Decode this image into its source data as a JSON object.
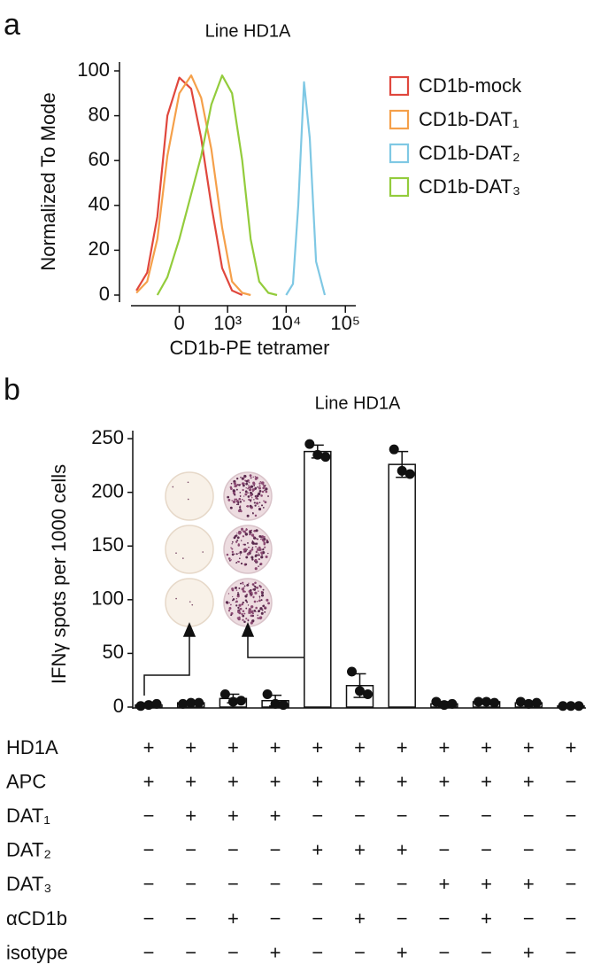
{
  "chart_data": [
    {
      "type": "line",
      "panel_label": "a",
      "title": "Line HD1A",
      "x_label": "CD1b-PE tetramer",
      "y_label": "Normalized To Mode",
      "xscale": "biexponential",
      "x": [
        -800,
        -500,
        -300,
        -150,
        0,
        150,
        300,
        500,
        800,
        1200,
        1800,
        2500,
        3500,
        5000,
        7000,
        10000,
        13000,
        16000,
        20000,
        25000,
        32000,
        45000
      ],
      "series": [
        {
          "name": "CD1b-mock",
          "color": "#e0473d",
          "values": [
            2,
            10,
            35,
            80,
            97,
            92,
            70,
            40,
            12,
            2,
            0,
            null,
            null,
            null,
            null,
            null,
            null,
            null,
            null,
            null,
            null,
            null
          ]
        },
        {
          "name": "CD1b-DAT₁",
          "color": "#f5a04a",
          "values": [
            1,
            6,
            25,
            62,
            90,
            98,
            88,
            65,
            30,
            6,
            1,
            0,
            null,
            null,
            null,
            null,
            null,
            null,
            null,
            null,
            null,
            null
          ]
        },
        {
          "name": "CD1b-DAT₂",
          "color": "#7fc8e4",
          "values": [
            null,
            null,
            null,
            null,
            null,
            null,
            null,
            null,
            null,
            null,
            null,
            null,
            null,
            null,
            null,
            0,
            5,
            40,
            95,
            70,
            15,
            0
          ]
        },
        {
          "name": "CD1b-DAT₃",
          "color": "#93cc3c",
          "values": [
            null,
            null,
            0,
            8,
            25,
            45,
            62,
            85,
            98,
            90,
            60,
            25,
            6,
            1,
            0,
            null,
            null,
            null,
            null,
            null,
            null,
            null
          ]
        }
      ],
      "xlim": [
        -1000,
        150000
      ],
      "xticks": [
        0,
        {
          "value": 1000,
          "label": "10³"
        },
        {
          "value": 10000,
          "label": "10⁴"
        },
        {
          "value": 100000,
          "label": "10⁵"
        }
      ],
      "ylim": [
        0,
        100
      ],
      "yticks": [
        0,
        20,
        40,
        60,
        80,
        100
      ],
      "legend": "right"
    },
    {
      "type": "bar",
      "panel_label": "b",
      "title": "Line HD1A",
      "y_label": "IFNγ spots per 1000 cells",
      "categories": [
        null,
        null,
        null,
        null,
        null,
        null,
        null,
        null,
        null,
        null,
        null
      ],
      "values": [
        2,
        4,
        8,
        6,
        238,
        20,
        226,
        3,
        5,
        4,
        1
      ],
      "errors": [
        1,
        1,
        4,
        5,
        6,
        11,
        12,
        2,
        1,
        1,
        0
      ],
      "points": [
        [
          1,
          2,
          3
        ],
        [
          3,
          4,
          4
        ],
        [
          12,
          5,
          6
        ],
        [
          12,
          3,
          2
        ],
        [
          245,
          235,
          233
        ],
        [
          33,
          15,
          12
        ],
        [
          240,
          220,
          217
        ],
        [
          5,
          2,
          3
        ],
        [
          5,
          5,
          4
        ],
        [
          5,
          3,
          4
        ],
        [
          1,
          1,
          1
        ]
      ],
      "color": "#ffffff",
      "edge_color": "#111111",
      "point_color": "#111111",
      "ylim": [
        0,
        255
      ],
      "yticks": [
        0,
        50,
        100,
        150,
        200,
        250
      ],
      "conditions": [
        {
          "label": "HD1A",
          "cells": [
            "+",
            "+",
            "+",
            "+",
            "+",
            "+",
            "+",
            "+",
            "+",
            "+",
            "+"
          ]
        },
        {
          "label": "APC",
          "cells": [
            "+",
            "+",
            "+",
            "+",
            "+",
            "+",
            "+",
            "+",
            "+",
            "+",
            "−"
          ]
        },
        {
          "label": "DAT₁",
          "cells": [
            "−",
            "+",
            "+",
            "+",
            "−",
            "−",
            "−",
            "−",
            "−",
            "−",
            "−"
          ]
        },
        {
          "label": "DAT₂",
          "cells": [
            "−",
            "−",
            "−",
            "−",
            "+",
            "+",
            "+",
            "−",
            "−",
            "−",
            "−"
          ]
        },
        {
          "label": "DAT₃",
          "cells": [
            "−",
            "−",
            "−",
            "−",
            "−",
            "−",
            "−",
            "+",
            "+",
            "+",
            "−"
          ]
        },
        {
          "label": "αCD1b",
          "cells": [
            "−",
            "−",
            "+",
            "−",
            "−",
            "+",
            "−",
            "−",
            "+",
            "−",
            "−"
          ]
        },
        {
          "label": "isotype",
          "cells": [
            "−",
            "−",
            "−",
            "+",
            "−",
            "−",
            "+",
            "−",
            "−",
            "+",
            "−"
          ]
        }
      ]
    }
  ]
}
